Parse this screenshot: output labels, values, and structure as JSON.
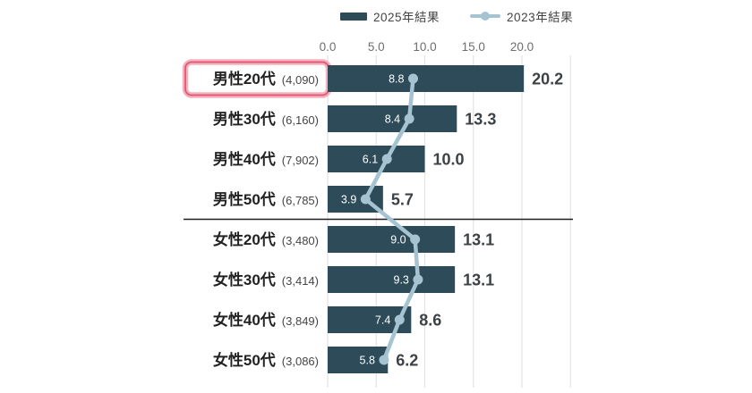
{
  "legend": {
    "items": [
      {
        "label": "2025年結果",
        "type": "bar"
      },
      {
        "label": "2023年結果",
        "type": "line"
      }
    ]
  },
  "colors": {
    "bar_2025": "#2e4b5a",
    "line_2023": "#a6c3d2",
    "grid": "#e3e3e3",
    "divider": "#1f1f1f",
    "tick_label": "#6e6e6e",
    "value_label": "#3c4146",
    "inner_label": "#ffffff",
    "category_label": "#212121",
    "sample_label": "#454545",
    "highlight_outer": "#f3b1bf",
    "highlight_inner": "#e4566f",
    "background": "#ffffff"
  },
  "chart_data": {
    "type": "bar",
    "orientation": "horizontal",
    "title": "",
    "xlabel": "",
    "ylabel": "",
    "grid": true,
    "legend_position": "top",
    "xlim": [
      0,
      25
    ],
    "xticks": [
      0,
      5,
      10,
      15,
      20,
      25
    ],
    "xtick_labels": [
      "0.0",
      "5.0",
      "10.0",
      "15.0",
      "20.0"
    ],
    "categories": [
      "男性20代",
      "男性30代",
      "男性40代",
      "男性50代",
      "女性20代",
      "女性30代",
      "女性40代",
      "女性50代"
    ],
    "sample_sizes": [
      "(4,090)",
      "(6,160)",
      "(7,902)",
      "(6,785)",
      "(3,480)",
      "(3,414)",
      "(3,849)",
      "(3,086)"
    ],
    "series": [
      {
        "name": "2025年結果",
        "type": "bar",
        "values": [
          20.2,
          13.3,
          10.0,
          5.7,
          13.1,
          13.1,
          8.6,
          6.2
        ]
      },
      {
        "name": "2023年結果",
        "type": "line",
        "values": [
          8.8,
          8.4,
          6.1,
          3.9,
          9.0,
          9.3,
          7.4,
          5.8
        ]
      }
    ],
    "highlighted_category": "男性20代",
    "divider_after_index": 3
  }
}
